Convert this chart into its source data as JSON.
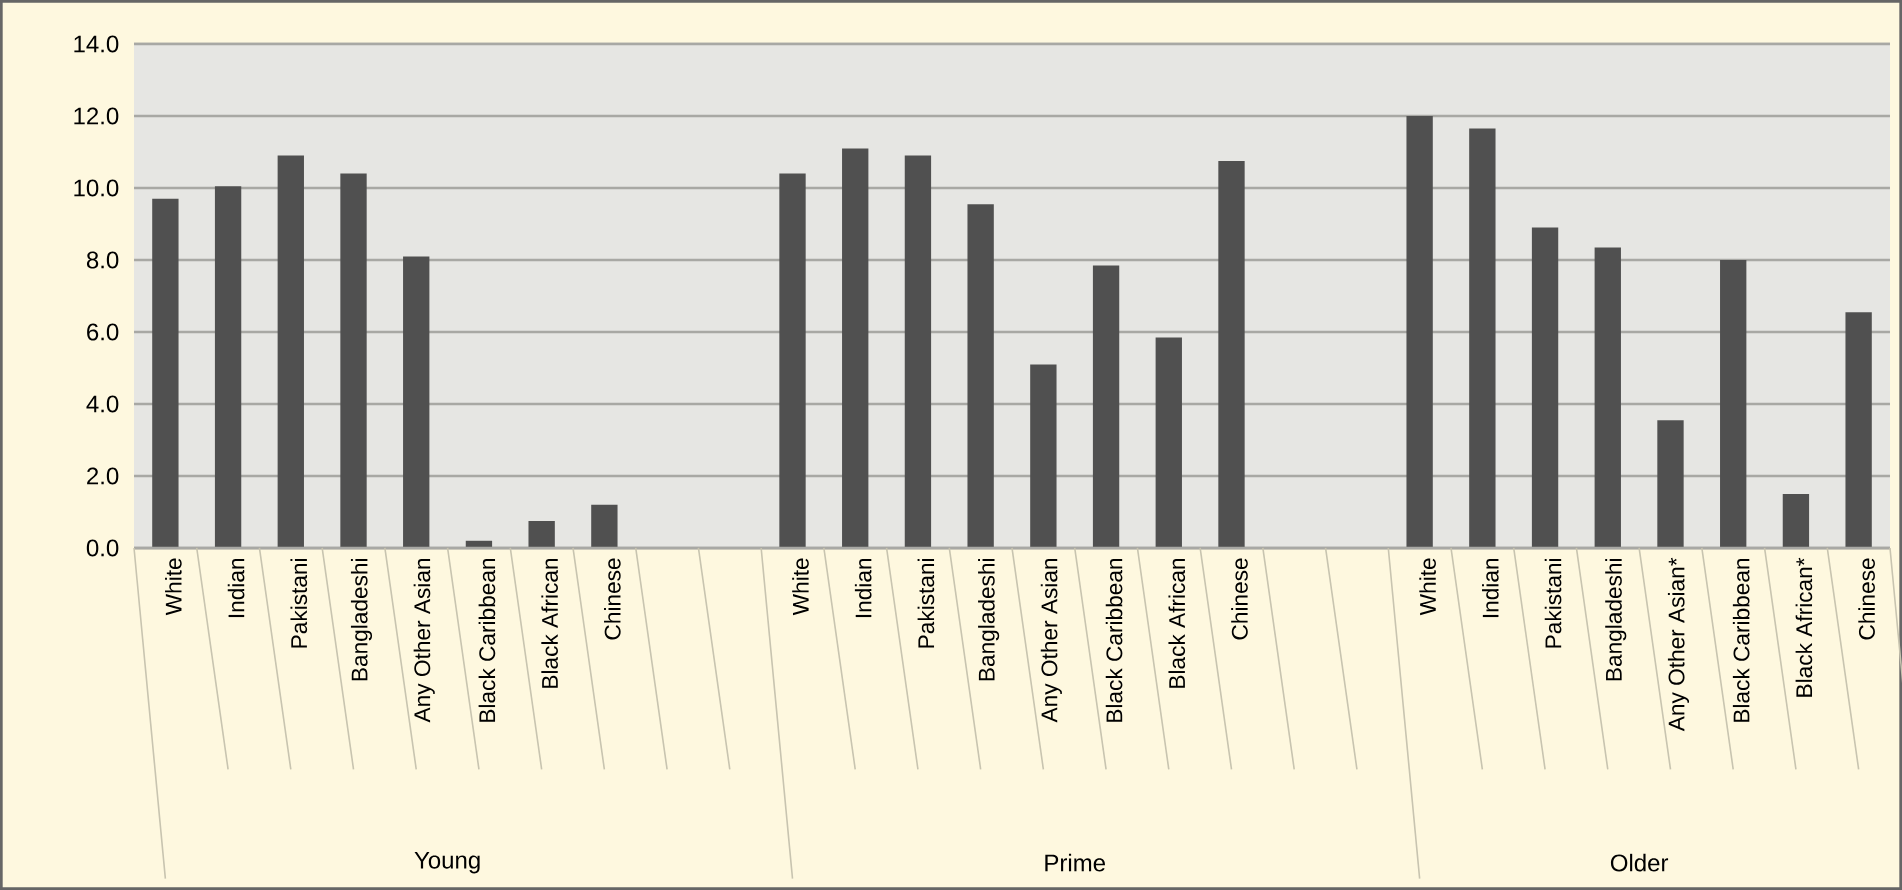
{
  "chart_data": {
    "type": "bar",
    "categories": [
      "White",
      "Indian",
      "Pakistani",
      "Bangladeshi",
      "Any Other Asian",
      "Black Caribbean",
      "Black African",
      "Chinese",
      null,
      null,
      "White",
      "Indian",
      "Pakistani",
      "Bangladeshi",
      "Any Other Asian",
      "Black Caribbean",
      "Black African",
      "Chinese",
      null,
      null,
      "White",
      "Indian",
      "Pakistani",
      "Bangladeshi",
      "Any Other Asian*",
      "Black Caribbean",
      "Black African*",
      "Chinese"
    ],
    "values": [
      9.7,
      10.05,
      10.9,
      10.4,
      8.1,
      0.2,
      0.75,
      1.2,
      null,
      null,
      10.4,
      11.1,
      10.9,
      9.55,
      5.1,
      7.85,
      5.85,
      10.75,
      null,
      null,
      12.0,
      11.65,
      8.9,
      8.35,
      3.55,
      8.0,
      1.5,
      6.55
    ],
    "color": "#505050",
    "ylim": [
      0,
      14
    ],
    "yticks": [
      {
        "value": 0,
        "label": "0.0"
      },
      {
        "value": 2,
        "label": "2.0"
      },
      {
        "value": 4,
        "label": "4.0"
      },
      {
        "value": 6,
        "label": "6.0"
      },
      {
        "value": 8,
        "label": "8.0"
      },
      {
        "value": 10,
        "label": "10.0"
      },
      {
        "value": 12,
        "label": "12.0"
      },
      {
        "value": 14,
        "label": "14.0"
      }
    ],
    "grid": "y",
    "annotations": [
      "Young",
      "Prime",
      "Older"
    ]
  }
}
